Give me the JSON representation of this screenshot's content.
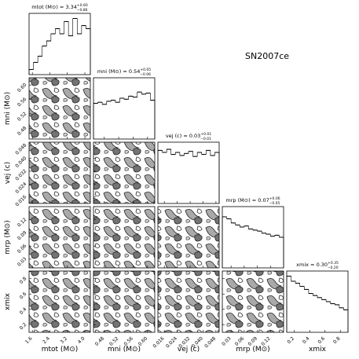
{
  "chart_data": {
    "type": "corner",
    "title": "SN2007ce",
    "params": [
      {
        "name": "mtot (M⊙)",
        "title": "mtot (M⊙) = 3.34",
        "upper": "+0.60",
        "lower": "−0.86",
        "xlim": [
          1.45,
          4.25
        ],
        "xticks": [
          1.6,
          2.4,
          3.2,
          {
            "value": 4,
            "label": "4.0"
          }
        ],
        "hist": [
          5,
          12,
          18,
          28,
          33,
          40,
          45,
          40,
          52,
          38,
          55,
          40,
          48,
          45
        ],
        "hist_ylim": [
          0,
          60
        ]
      },
      {
        "name": "mni (M⊙)",
        "title": "mni (M⊙) = 0.54",
        "upper": "+0.05",
        "lower": "−0.06",
        "xlim": [
          0.45,
          0.62
        ],
        "xticks": [
          0.48,
          0.52,
          0.56,
          {
            "value": 0.6,
            "label": "0.60"
          }
        ],
        "hist": [
          35,
          36,
          34,
          37,
          38,
          36,
          40,
          39,
          42,
          41,
          46,
          44,
          45,
          38
        ],
        "hist_ylim": [
          0,
          60
        ]
      },
      {
        "name": "vej (c)",
        "title": "vej (c) = 0.03",
        "upper": "+0.01",
        "lower": "−0.01",
        "xlim": [
          0.012,
          0.05
        ],
        "xticks": [
          0.016,
          0.024,
          0.032,
          {
            "value": 0.04,
            "label": "0.040"
          },
          0.048
        ],
        "hist": [
          52,
          50,
          53,
          48,
          50,
          47,
          49,
          51,
          46,
          50,
          48,
          52,
          47,
          50
        ],
        "hist_ylim": [
          0,
          60
        ]
      },
      {
        "name": "mrp (M⊙)",
        "title": "mrp (M⊙) = 0.07",
        "upper": "+0.06",
        "lower": "−0.05",
        "xlim": [
          0.01,
          0.15
        ],
        "xticks": [
          0.03,
          0.06,
          0.09,
          0.12
        ],
        "hist": [
          50,
          48,
          44,
          42,
          40,
          41,
          38,
          37,
          36,
          34,
          33,
          31,
          32,
          30
        ],
        "hist_ylim": [
          0,
          60
        ]
      },
      {
        "name": "xmix",
        "title": "xmix = 0.30",
        "upper": "+0.35",
        "lower": "−0.20",
        "xlim": [
          0.1,
          0.9
        ],
        "xticks": [
          0.2,
          0.4,
          0.6,
          0.8
        ],
        "hist": [
          55,
          50,
          48,
          45,
          42,
          38,
          36,
          34,
          32,
          30,
          28,
          27,
          24,
          22
        ],
        "hist_ylim": [
          0,
          60
        ]
      }
    ]
  }
}
